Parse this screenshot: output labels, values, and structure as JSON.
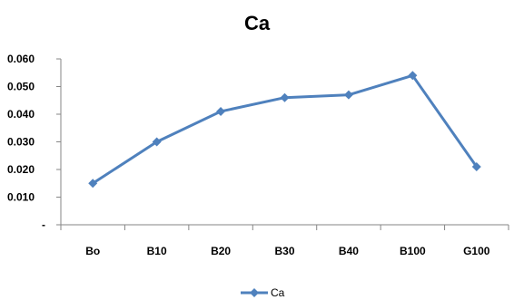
{
  "chart_data": {
    "type": "line",
    "title": "Ca",
    "categories": [
      "Bo",
      "B10",
      "B20",
      "B30",
      "B40",
      "B100",
      "G100"
    ],
    "series": [
      {
        "name": "Ca",
        "values": [
          0.015,
          0.03,
          0.041,
          0.046,
          0.047,
          0.054,
          0.021
        ]
      }
    ],
    "ylim": [
      0,
      0.06
    ],
    "y_ticks": [
      {
        "value": 0.06,
        "label": "0.060"
      },
      {
        "value": 0.05,
        "label": "0.050"
      },
      {
        "value": 0.04,
        "label": "0.040"
      },
      {
        "value": 0.03,
        "label": "0.030"
      },
      {
        "value": 0.02,
        "label": "0.020"
      },
      {
        "value": 0.01,
        "label": "0.010"
      },
      {
        "value": 0,
        "label": "-"
      }
    ],
    "grid": false,
    "legend": "bottom",
    "marker": "diamond",
    "colors": {
      "series": "#4F81BD",
      "axis": "#868686"
    }
  }
}
